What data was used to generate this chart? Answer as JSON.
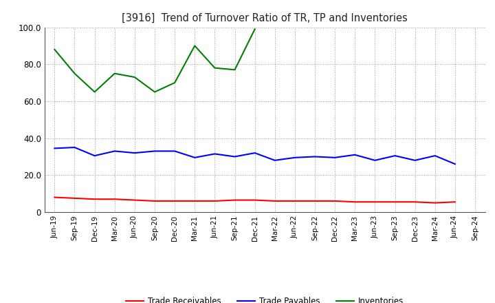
{
  "title": "[3916]  Trend of Turnover Ratio of TR, TP and Inventories",
  "x_labels": [
    "Jun-19",
    "Sep-19",
    "Dec-19",
    "Mar-20",
    "Jun-20",
    "Sep-20",
    "Dec-20",
    "Mar-21",
    "Jun-21",
    "Sep-21",
    "Dec-21",
    "Mar-22",
    "Jun-22",
    "Sep-22",
    "Dec-22",
    "Mar-23",
    "Jun-23",
    "Sep-23",
    "Dec-23",
    "Mar-24",
    "Jun-24",
    "Sep-24"
  ],
  "trade_receivables": [
    8.0,
    7.5,
    7.0,
    7.0,
    6.5,
    6.0,
    6.0,
    6.0,
    6.0,
    6.5,
    6.5,
    6.0,
    6.0,
    6.0,
    6.0,
    5.5,
    5.5,
    5.5,
    5.5,
    5.0,
    5.5,
    null
  ],
  "trade_payables": [
    34.5,
    35.0,
    30.5,
    33.0,
    32.0,
    33.0,
    33.0,
    29.5,
    31.5,
    30.0,
    32.0,
    28.0,
    29.5,
    30.0,
    29.5,
    31.0,
    28.0,
    30.5,
    28.0,
    30.5,
    26.0,
    null
  ],
  "inventories": [
    88.0,
    75.0,
    65.0,
    75.0,
    73.0,
    65.0,
    70.0,
    90.0,
    78.0,
    77.0,
    99.0,
    null,
    null,
    null,
    null,
    null,
    null,
    null,
    null,
    null,
    null,
    null
  ],
  "ylim": [
    0.0,
    100.0
  ],
  "yticks": [
    0.0,
    20.0,
    40.0,
    60.0,
    80.0,
    100.0
  ],
  "ytick_labels": [
    "0",
    "20.0",
    "40.0",
    "60.0",
    "80.0",
    "100.0"
  ],
  "color_tr": "#ff0000",
  "color_tp": "#0000ff",
  "color_inv": "#008000",
  "legend_labels": [
    "Trade Receivables",
    "Trade Payables",
    "Inventories"
  ],
  "background_color": "#ffffff",
  "grid_color": "#999999"
}
